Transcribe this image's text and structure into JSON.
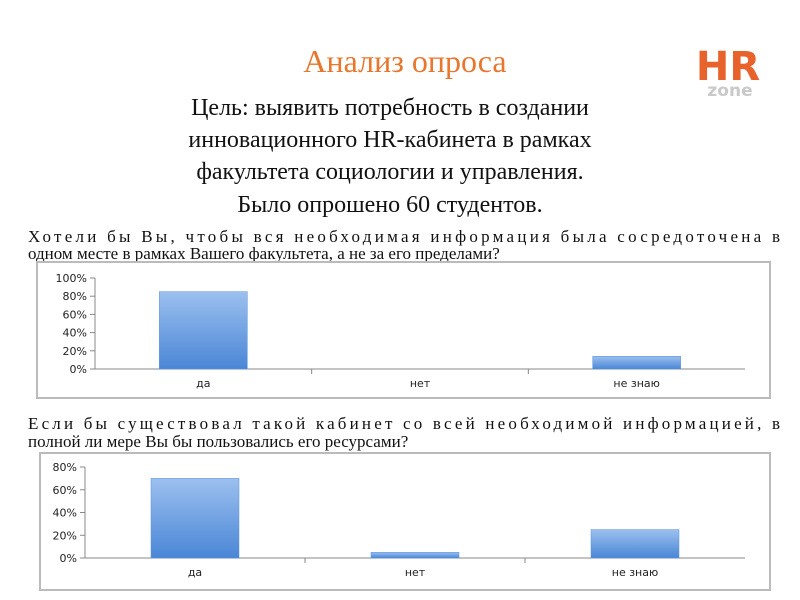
{
  "title": "Анализ опроса",
  "subtitle": [
    "Цель: выявить потребность в создании",
    "инновационного HR-кабинета в рамках",
    "факультета социологии и управления.",
    "Было опрошено 60 студентов."
  ],
  "logo": {
    "top": "HR",
    "bottom": "zone"
  },
  "chart_data": [
    {
      "type": "bar",
      "title": [
        "Хотели бы Вы, чтобы вся необходимая информация была сосредоточена в",
        "одном месте в рамках Вашего факультета, а не за его пределами?"
      ],
      "categories": [
        "да",
        "нет",
        "не знаю"
      ],
      "values": [
        85,
        0,
        14
      ],
      "ylim": [
        0,
        100
      ],
      "yticks": [
        {
          "value": 0,
          "label": "0%"
        },
        {
          "value": 20,
          "label": "20%"
        },
        {
          "value": 40,
          "label": "40%"
        },
        {
          "value": 60,
          "label": "60%"
        },
        {
          "value": 80,
          "label": "80%"
        },
        {
          "value": 100,
          "label": "100%"
        }
      ],
      "color": "#5a93dd"
    },
    {
      "type": "bar",
      "title": [
        "Если бы существовал такой кабинет со всей необходимой информацией, в",
        "полной ли мере Вы бы пользовались его ресурсами?"
      ],
      "categories": [
        "да",
        "нет",
        "не знаю"
      ],
      "values": [
        70,
        5,
        25
      ],
      "ylim": [
        0,
        80
      ],
      "yticks": [
        {
          "value": 0,
          "label": "0%"
        },
        {
          "value": 20,
          "label": "20%"
        },
        {
          "value": 40,
          "label": "40%"
        },
        {
          "value": 60,
          "label": "60%"
        },
        {
          "value": 80,
          "label": "80%"
        }
      ],
      "color": "#5a93dd"
    }
  ]
}
